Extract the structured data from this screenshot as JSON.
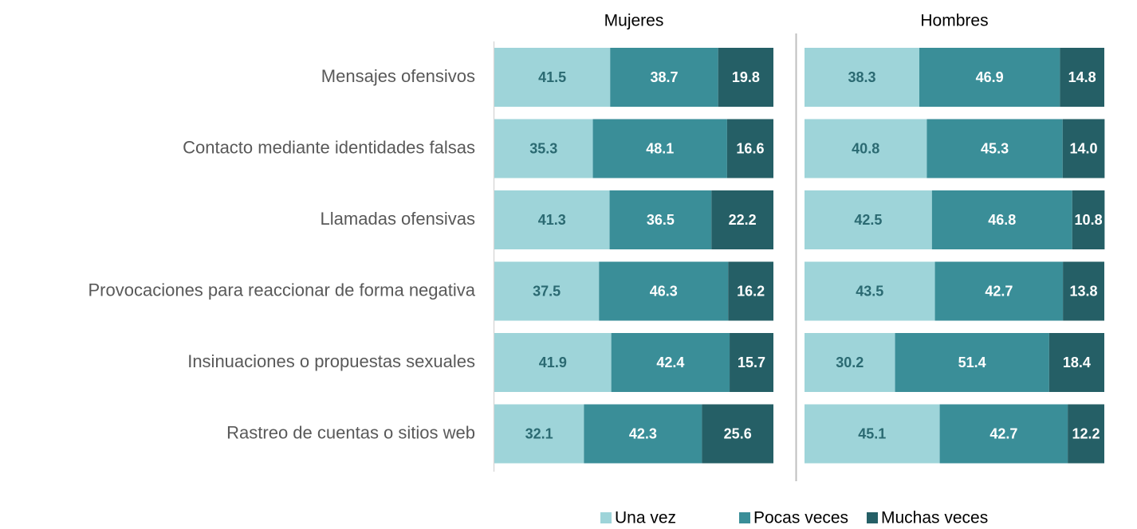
{
  "chart_data": {
    "type": "bar",
    "orientation": "horizontal",
    "stacked": true,
    "categories": [
      "Mensajes ofensivos",
      "Contacto mediante identidades falsas",
      "Llamadas ofensivas",
      "Provocaciones para reaccionar de forma negativa",
      "Insinuaciones o propuestas sexuales",
      "Rastreo de cuentas o sitios web"
    ],
    "series": [
      {
        "name": "Una vez",
        "color": "#9ed4d9"
      },
      {
        "name": "Pocas veces",
        "color": "#3a8e98"
      },
      {
        "name": "Muchas veces",
        "color": "#255f66"
      }
    ],
    "xlim": [
      0,
      100
    ],
    "panels": [
      {
        "title": "Mujeres",
        "series": [
          {
            "values": [
              41.5,
              35.3,
              41.3,
              37.5,
              41.9,
              32.1
            ]
          },
          {
            "values": [
              38.7,
              48.1,
              36.5,
              46.3,
              42.4,
              42.3
            ]
          },
          {
            "values": [
              19.8,
              16.6,
              22.2,
              16.2,
              15.7,
              25.6
            ]
          }
        ]
      },
      {
        "title": "Hombres",
        "series": [
          {
            "values": [
              38.3,
              40.8,
              42.5,
              43.5,
              30.2,
              45.1
            ]
          },
          {
            "values": [
              46.9,
              45.3,
              46.8,
              42.7,
              51.4,
              42.7
            ]
          },
          {
            "values": [
              14.8,
              14.0,
              10.8,
              13.8,
              18.4,
              12.2
            ],
            "value_labels": [
              "14.8",
              "14.0",
              "10.8",
              "13.8",
              "18.4",
              "12.2"
            ]
          }
        ]
      }
    ]
  }
}
